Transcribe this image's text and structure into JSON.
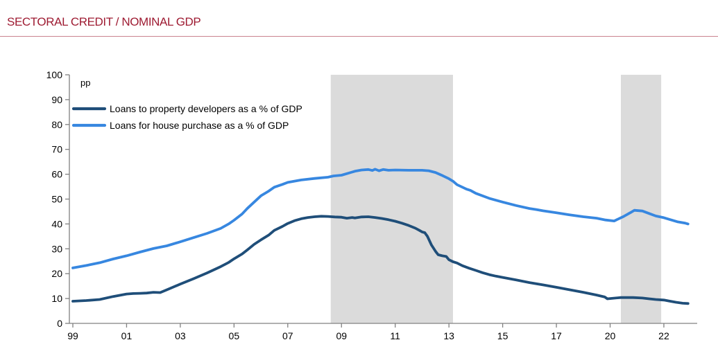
{
  "title": "SECTORAL CREDIT / NOMINAL GDP",
  "colors": {
    "title": "#9E1B32",
    "axis": "#808080",
    "label_text": "#000000",
    "band": "#DBDBDB",
    "developers_line": "#1F4E79",
    "house_line": "#3787E0"
  },
  "chart_data": {
    "type": "line",
    "title": "SECTORAL CREDIT / NOMINAL GDP",
    "unit_label": "pp",
    "grid": false,
    "legend_position": "top-left",
    "y_axis": {
      "min": 0,
      "max": 100,
      "step": 10
    },
    "x_ticks": [
      {
        "label": "99",
        "year": 1999
      },
      {
        "label": "01",
        "year": 2001
      },
      {
        "label": "03",
        "year": 2003
      },
      {
        "label": "05",
        "year": 2005
      },
      {
        "label": "07",
        "year": 2007
      },
      {
        "label": "09",
        "year": 2009
      },
      {
        "label": "11",
        "year": 2011
      },
      {
        "label": "13",
        "year": 2013
      },
      {
        "label": "15",
        "year": 2015
      },
      {
        "label": "17",
        "year": 2017
      },
      {
        "label": "20",
        "year": 2020
      },
      {
        "label": "22",
        "year": 2022
      }
    ],
    "shaded_bands": [
      {
        "from": 2008.6,
        "to": 2013.15
      },
      {
        "from": 2020.4,
        "to": 2021.9
      }
    ],
    "series": [
      {
        "name": "Loans to property developers as a % of GDP",
        "color_key": "developers_line",
        "points": [
          [
            1999.0,
            8.9
          ],
          [
            1999.5,
            9.2
          ],
          [
            2000.0,
            9.6
          ],
          [
            2000.5,
            10.8
          ],
          [
            2001.0,
            11.8
          ],
          [
            2001.25,
            12.0
          ],
          [
            2001.5,
            12.1
          ],
          [
            2001.75,
            12.2
          ],
          [
            2002.0,
            12.5
          ],
          [
            2002.25,
            12.4
          ],
          [
            2002.5,
            13.5
          ],
          [
            2003.0,
            15.8
          ],
          [
            2003.5,
            18.0
          ],
          [
            2004.0,
            20.3
          ],
          [
            2004.5,
            22.8
          ],
          [
            2004.8,
            24.5
          ],
          [
            2005.0,
            26.0
          ],
          [
            2005.3,
            27.9
          ],
          [
            2005.5,
            29.6
          ],
          [
            2005.75,
            31.8
          ],
          [
            2006.0,
            33.6
          ],
          [
            2006.3,
            35.6
          ],
          [
            2006.5,
            37.4
          ],
          [
            2006.8,
            39.0
          ],
          [
            2007.0,
            40.2
          ],
          [
            2007.25,
            41.3
          ],
          [
            2007.5,
            42.1
          ],
          [
            2007.75,
            42.6
          ],
          [
            2008.0,
            42.9
          ],
          [
            2008.25,
            43.1
          ],
          [
            2008.5,
            43.0
          ],
          [
            2008.75,
            42.8
          ],
          [
            2009.0,
            42.7
          ],
          [
            2009.2,
            42.3
          ],
          [
            2009.4,
            42.6
          ],
          [
            2009.5,
            42.4
          ],
          [
            2009.75,
            42.8
          ],
          [
            2010.0,
            42.9
          ],
          [
            2010.25,
            42.6
          ],
          [
            2010.5,
            42.2
          ],
          [
            2010.75,
            41.7
          ],
          [
            2011.0,
            41.1
          ],
          [
            2011.25,
            40.3
          ],
          [
            2011.5,
            39.4
          ],
          [
            2011.75,
            38.3
          ],
          [
            2011.9,
            37.4
          ],
          [
            2012.0,
            36.8
          ],
          [
            2012.1,
            36.5
          ],
          [
            2012.2,
            35.0
          ],
          [
            2012.35,
            31.5
          ],
          [
            2012.5,
            29.0
          ],
          [
            2012.6,
            27.6
          ],
          [
            2012.75,
            27.2
          ],
          [
            2012.9,
            26.9
          ],
          [
            2013.0,
            25.6
          ],
          [
            2013.15,
            24.8
          ],
          [
            2013.3,
            24.3
          ],
          [
            2013.5,
            23.2
          ],
          [
            2013.75,
            22.2
          ],
          [
            2014.0,
            21.3
          ],
          [
            2014.25,
            20.4
          ],
          [
            2014.5,
            19.6
          ],
          [
            2014.75,
            19.0
          ],
          [
            2015.0,
            18.5
          ],
          [
            2015.5,
            17.5
          ],
          [
            2016.0,
            16.4
          ],
          [
            2016.5,
            15.5
          ],
          [
            2017.0,
            14.5
          ],
          [
            2017.7,
            13.6
          ],
          [
            2018.5,
            12.5
          ],
          [
            2019.25,
            11.4
          ],
          [
            2019.7,
            10.6
          ],
          [
            2019.85,
            9.9
          ],
          [
            2020.0,
            10.0
          ],
          [
            2020.4,
            10.4
          ],
          [
            2020.85,
            10.4
          ],
          [
            2021.2,
            10.2
          ],
          [
            2021.45,
            9.9
          ],
          [
            2021.7,
            9.6
          ],
          [
            2022.0,
            9.4
          ],
          [
            2022.2,
            9.0
          ],
          [
            2022.45,
            8.5
          ],
          [
            2022.7,
            8.1
          ],
          [
            2022.9,
            8.0
          ]
        ]
      },
      {
        "name": "Loans for house purchase as a % of GDP",
        "color_key": "house_line",
        "points": [
          [
            1999.0,
            22.3
          ],
          [
            1999.5,
            23.3
          ],
          [
            2000.0,
            24.4
          ],
          [
            2000.5,
            25.9
          ],
          [
            2001.0,
            27.2
          ],
          [
            2001.5,
            28.7
          ],
          [
            2002.0,
            30.1
          ],
          [
            2002.5,
            31.2
          ],
          [
            2003.0,
            32.8
          ],
          [
            2003.5,
            34.5
          ],
          [
            2004.0,
            36.2
          ],
          [
            2004.5,
            38.2
          ],
          [
            2004.8,
            40.0
          ],
          [
            2005.0,
            41.5
          ],
          [
            2005.3,
            44.0
          ],
          [
            2005.5,
            46.3
          ],
          [
            2005.75,
            48.8
          ],
          [
            2006.0,
            51.3
          ],
          [
            2006.3,
            53.3
          ],
          [
            2006.5,
            54.8
          ],
          [
            2006.8,
            55.9
          ],
          [
            2007.0,
            56.7
          ],
          [
            2007.5,
            57.7
          ],
          [
            2008.0,
            58.3
          ],
          [
            2008.5,
            58.8
          ],
          [
            2008.7,
            59.3
          ],
          [
            2009.0,
            59.6
          ],
          [
            2009.25,
            60.4
          ],
          [
            2009.5,
            61.2
          ],
          [
            2009.75,
            61.7
          ],
          [
            2010.0,
            61.9
          ],
          [
            2010.15,
            61.5
          ],
          [
            2010.25,
            62.0
          ],
          [
            2010.4,
            61.4
          ],
          [
            2010.55,
            61.9
          ],
          [
            2010.75,
            61.6
          ],
          [
            2011.0,
            61.7
          ],
          [
            2011.5,
            61.6
          ],
          [
            2012.0,
            61.6
          ],
          [
            2012.25,
            61.4
          ],
          [
            2012.5,
            60.7
          ],
          [
            2012.75,
            59.5
          ],
          [
            2013.0,
            58.2
          ],
          [
            2013.15,
            57.2
          ],
          [
            2013.3,
            55.8
          ],
          [
            2013.5,
            54.8
          ],
          [
            2013.65,
            54.0
          ],
          [
            2013.8,
            53.5
          ],
          [
            2014.0,
            52.3
          ],
          [
            2014.5,
            50.3
          ],
          [
            2015.0,
            48.8
          ],
          [
            2015.5,
            47.4
          ],
          [
            2016.0,
            46.2
          ],
          [
            2016.25,
            45.8
          ],
          [
            2016.5,
            45.3
          ],
          [
            2017.0,
            44.5
          ],
          [
            2017.7,
            43.7
          ],
          [
            2018.5,
            42.9
          ],
          [
            2019.25,
            42.3
          ],
          [
            2019.75,
            41.6
          ],
          [
            2020.15,
            41.2
          ],
          [
            2020.5,
            43.0
          ],
          [
            2020.75,
            44.5
          ],
          [
            2020.9,
            45.5
          ],
          [
            2021.2,
            45.2
          ],
          [
            2021.45,
            44.2
          ],
          [
            2021.7,
            43.2
          ],
          [
            2022.0,
            42.5
          ],
          [
            2022.25,
            41.7
          ],
          [
            2022.5,
            40.9
          ],
          [
            2022.8,
            40.3
          ],
          [
            2022.9,
            40.0
          ]
        ]
      }
    ]
  }
}
